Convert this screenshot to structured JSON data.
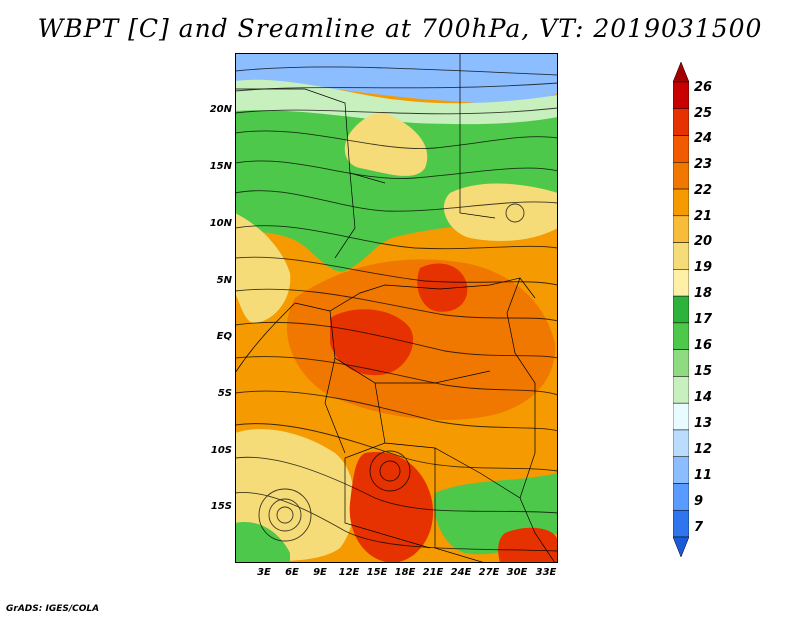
{
  "title": "WBPT [C] and Sreamline at 700hPa, VT: 2019031500",
  "credit": "GrADS: IGES/COLA",
  "latitude_labels": [
    "20N",
    "15N",
    "10N",
    "5N",
    "EQ",
    "5S",
    "10S",
    "15S"
  ],
  "longitude_labels": [
    "3E",
    "6E",
    "9E",
    "12E",
    "15E",
    "18E",
    "21E",
    "24E",
    "27E",
    "30E",
    "33E"
  ],
  "colorbar": {
    "labels": [
      "26",
      "25",
      "24",
      "23",
      "22",
      "21",
      "20",
      "19",
      "18",
      "17",
      "16",
      "15",
      "14",
      "13",
      "12",
      "11",
      "9",
      "7"
    ],
    "colors": [
      "#a50000",
      "#c80000",
      "#e63200",
      "#f25a00",
      "#f07800",
      "#f59a00",
      "#f7bc3a",
      "#f5dc78",
      "#fff0a8",
      "#2db33c",
      "#4ec84a",
      "#8fdb82",
      "#c8efbe",
      "#e8fbff",
      "#b9dcff",
      "#8cbdff",
      "#5a9bff",
      "#2f76ee",
      "#1a5ad8"
    ]
  },
  "map_colors": {
    "cold": "#8cbdff",
    "cool": "#c8efbe",
    "green": "#4ec84a",
    "pale": "#f5dc78",
    "orange": "#f59a00",
    "warm": "#f07800",
    "hot": "#e63200"
  }
}
